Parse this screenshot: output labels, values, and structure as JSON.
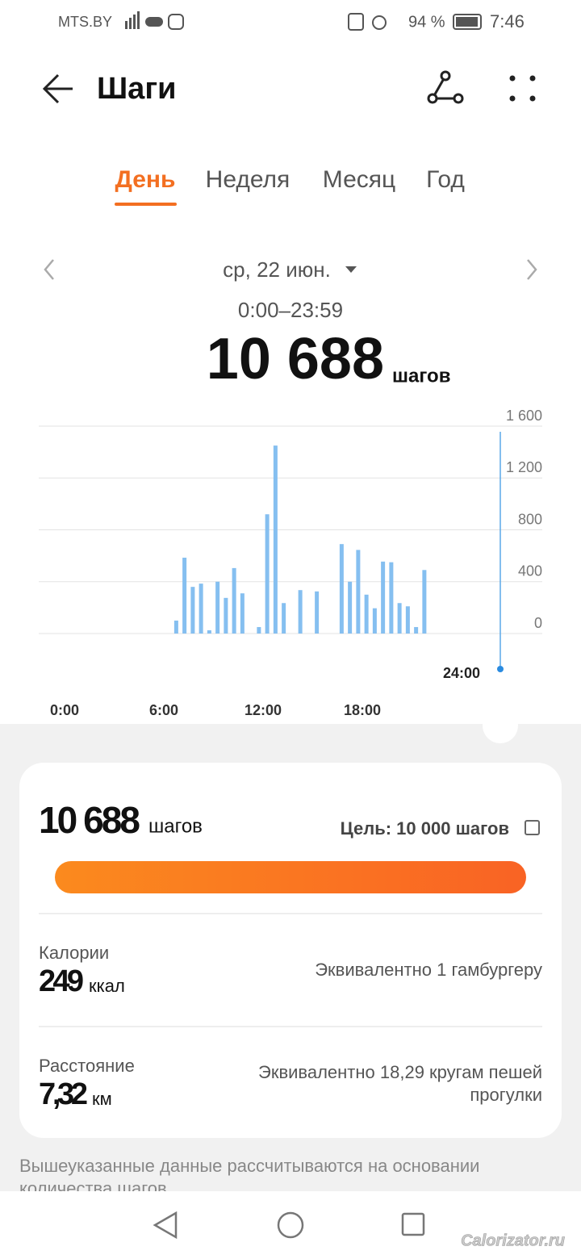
{
  "status_bar": {
    "carrier": "MTS.BY",
    "battery": "94 %",
    "time": "7:46"
  },
  "header": {
    "title": "Шаги"
  },
  "tabs": {
    "items": [
      "День",
      "Неделя",
      "Месяц",
      "Год"
    ],
    "active": 0
  },
  "date": "ср, 22 июн.",
  "time_range": "0:00–23:59",
  "total": {
    "value": "10 688",
    "unit": "шагов"
  },
  "chart_data": {
    "type": "bar",
    "color": "#85bff0",
    "grid": true,
    "x": [
      6.75,
      7.25,
      7.75,
      8.25,
      8.75,
      9.25,
      9.75,
      10.25,
      10.75,
      11.75,
      12.25,
      12.75,
      13.25,
      14.25,
      15.25,
      16.75,
      17.25,
      17.75,
      18.25,
      18.75,
      19.25,
      19.75,
      20.25,
      20.75,
      21.25,
      21.75
    ],
    "values": [
      100,
      585,
      360,
      385,
      25,
      400,
      275,
      505,
      310,
      50,
      920,
      1450,
      235,
      335,
      325,
      690,
      400,
      645,
      300,
      195,
      555,
      550,
      235,
      210,
      50,
      490
    ],
    "xlim": [
      0,
      24
    ],
    "xticks": [
      {
        "value": 0,
        "label": "0:00"
      },
      {
        "value": 6,
        "label": "6:00"
      },
      {
        "value": 12,
        "label": "12:00"
      },
      {
        "value": 18,
        "label": "18:00"
      }
    ],
    "ylim": [
      0,
      1600
    ],
    "yticks": [
      0,
      400,
      800,
      {
        "value": 1200,
        "label": "1 200"
      },
      {
        "value": 1600,
        "label": "1 600"
      }
    ],
    "cursor_label": "24:00"
  },
  "summary": {
    "steps": "10 688",
    "steps_unit": "шагов",
    "goal": "Цель: 10 000 шагов",
    "calories_label": "Калории",
    "calories": "249",
    "calories_unit": "ккал",
    "calories_equiv": "Эквивалентно 1 гамбургеру",
    "distance_label": "Расстояние",
    "distance": "7,32",
    "distance_unit": "км",
    "distance_equiv": [
      "Эквивалентно 18,29 кругам пешей",
      "прогулки"
    ]
  },
  "footnote": [
    "Вышеуказанные данные рассчитываются на основании",
    "количества шагов"
  ],
  "watermark": "Calorizator.ru"
}
